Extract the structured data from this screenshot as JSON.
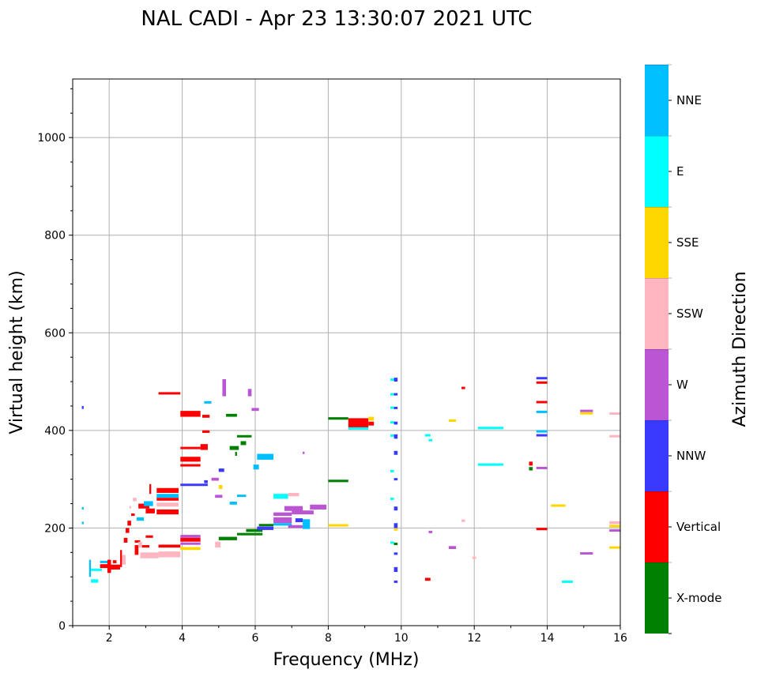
{
  "chart_data": {
    "type": "scatter",
    "title": "NAL CADI - Apr 23 13:30:07 2021 UTC",
    "xlabel": "Frequency (MHz)",
    "ylabel": "Virtual height (km)",
    "xlim": [
      1,
      16
    ],
    "ylim": [
      0,
      1120
    ],
    "xticks": [
      2,
      4,
      6,
      8,
      10,
      12,
      14,
      16
    ],
    "yticks": [
      0,
      200,
      400,
      600,
      800,
      1000
    ],
    "grid": true,
    "colorbar": {
      "label": "Azimuth Direction",
      "categories": [
        "X-mode",
        "Vertical",
        "NNW",
        "W",
        "SSW",
        "SSE",
        "E",
        "NNE"
      ],
      "colors": [
        "#008000",
        "#ff0000",
        "#3a3aff",
        "#ba55d3",
        "#ffb6c1",
        "#ffd700",
        "#00ffff",
        "#00bfff"
      ]
    },
    "segment_format": "[freq_start_MHz, freq_end_MHz, height_low_km, height_high_km, direction_index]",
    "segments": [
      [
        1.25,
        1.3,
        444,
        450,
        2
      ],
      [
        1.25,
        1.3,
        238,
        243,
        7
      ],
      [
        1.25,
        1.3,
        208,
        213,
        7
      ],
      [
        1.45,
        1.5,
        100,
        135,
        7
      ],
      [
        1.5,
        1.7,
        88,
        95,
        6
      ],
      [
        1.5,
        1.8,
        112,
        117,
        6
      ],
      [
        1.75,
        2.0,
        118,
        126,
        1
      ],
      [
        1.75,
        2.0,
        128,
        133,
        7
      ],
      [
        1.95,
        2.05,
        108,
        135,
        1
      ],
      [
        2.05,
        2.3,
        115,
        125,
        1
      ],
      [
        2.1,
        2.2,
        128,
        134,
        1
      ],
      [
        2.3,
        2.35,
        120,
        155,
        1
      ],
      [
        2.35,
        2.45,
        125,
        145,
        4
      ],
      [
        2.4,
        2.5,
        170,
        180,
        1
      ],
      [
        2.45,
        2.55,
        190,
        200,
        1
      ],
      [
        2.5,
        2.6,
        205,
        215,
        1
      ],
      [
        2.55,
        2.6,
        240,
        245,
        4
      ],
      [
        2.6,
        2.7,
        225,
        230,
        1
      ],
      [
        2.65,
        2.75,
        255,
        262,
        4
      ],
      [
        2.7,
        2.8,
        145,
        165,
        1
      ],
      [
        2.7,
        2.85,
        170,
        175,
        1
      ],
      [
        2.75,
        2.95,
        215,
        222,
        7
      ],
      [
        2.8,
        2.9,
        160,
        172,
        4
      ],
      [
        2.8,
        3.1,
        240,
        250,
        1
      ],
      [
        2.85,
        3.35,
        138,
        150,
        4
      ],
      [
        2.9,
        3.1,
        160,
        165,
        1
      ],
      [
        2.95,
        3.2,
        245,
        255,
        7
      ],
      [
        3.0,
        3.25,
        230,
        240,
        1
      ],
      [
        3.0,
        3.2,
        180,
        185,
        1
      ],
      [
        3.1,
        3.15,
        270,
        290,
        1
      ],
      [
        3.3,
        3.9,
        228,
        238,
        1
      ],
      [
        3.3,
        3.9,
        244,
        252,
        4
      ],
      [
        3.3,
        3.9,
        256,
        262,
        1
      ],
      [
        3.3,
        3.9,
        262,
        270,
        7
      ],
      [
        3.3,
        3.9,
        272,
        282,
        1
      ],
      [
        3.35,
        3.95,
        140,
        152,
        4
      ],
      [
        3.35,
        3.95,
        160,
        166,
        1
      ],
      [
        3.95,
        4.5,
        155,
        161,
        5
      ],
      [
        3.95,
        4.5,
        166,
        170,
        3
      ],
      [
        3.95,
        4.5,
        172,
        180,
        1
      ],
      [
        3.95,
        4.5,
        180,
        186,
        3
      ],
      [
        3.35,
        3.95,
        474,
        478,
        1
      ],
      [
        3.95,
        4.5,
        428,
        440,
        1
      ],
      [
        3.95,
        4.5,
        362,
        366,
        1
      ],
      [
        3.95,
        4.5,
        336,
        346,
        1
      ],
      [
        3.95,
        4.5,
        326,
        331,
        1
      ],
      [
        3.95,
        4.7,
        287,
        290,
        2
      ],
      [
        4.5,
        4.7,
        360,
        372,
        1
      ],
      [
        4.55,
        4.75,
        395,
        400,
        1
      ],
      [
        4.55,
        4.75,
        426,
        432,
        1
      ],
      [
        4.6,
        4.8,
        455,
        460,
        7
      ],
      [
        4.6,
        4.7,
        292,
        298,
        2
      ],
      [
        4.8,
        5.0,
        297,
        303,
        3
      ],
      [
        4.9,
        5.1,
        262,
        268,
        3
      ],
      [
        4.9,
        5.05,
        160,
        172,
        4
      ],
      [
        5.0,
        5.15,
        315,
        322,
        2
      ],
      [
        5.0,
        5.1,
        280,
        288,
        5
      ],
      [
        5.0,
        5.5,
        175,
        182,
        0
      ],
      [
        5.1,
        5.2,
        470,
        505,
        3
      ],
      [
        5.2,
        5.5,
        428,
        434,
        0
      ],
      [
        5.3,
        5.55,
        360,
        368,
        0
      ],
      [
        5.45,
        5.5,
        348,
        356,
        0
      ],
      [
        5.5,
        5.9,
        386,
        390,
        0
      ],
      [
        5.3,
        5.5,
        248,
        254,
        7
      ],
      [
        5.5,
        5.75,
        264,
        268,
        7
      ],
      [
        5.6,
        5.75,
        370,
        378,
        0
      ],
      [
        5.8,
        5.9,
        470,
        485,
        3
      ],
      [
        5.9,
        6.1,
        440,
        446,
        3
      ],
      [
        5.5,
        6.2,
        185,
        190,
        0
      ],
      [
        5.75,
        6.2,
        192,
        198,
        0
      ],
      [
        5.95,
        6.1,
        320,
        330,
        7
      ],
      [
        6.05,
        6.5,
        340,
        352,
        7
      ],
      [
        6.05,
        6.5,
        196,
        203,
        2
      ],
      [
        6.1,
        6.5,
        204,
        208,
        0
      ],
      [
        6.5,
        6.9,
        260,
        270,
        6
      ],
      [
        6.5,
        7.0,
        225,
        232,
        3
      ],
      [
        6.5,
        7.0,
        210,
        222,
        3
      ],
      [
        6.5,
        7.0,
        205,
        210,
        7
      ],
      [
        6.9,
        7.2,
        265,
        272,
        4
      ],
      [
        6.8,
        7.3,
        235,
        245,
        3
      ],
      [
        7.0,
        7.6,
        228,
        236,
        3
      ],
      [
        7.1,
        7.3,
        212,
        220,
        2
      ],
      [
        7.3,
        7.5,
        198,
        218,
        7
      ],
      [
        7.5,
        7.95,
        238,
        248,
        3
      ],
      [
        7.3,
        7.35,
        352,
        356,
        3
      ],
      [
        6.9,
        7.3,
        200,
        206,
        3
      ],
      [
        8.0,
        8.55,
        422,
        427,
        0
      ],
      [
        8.55,
        9.1,
        405,
        425,
        1
      ],
      [
        8.55,
        9.1,
        402,
        406,
        6
      ],
      [
        9.1,
        9.25,
        420,
        428,
        5
      ],
      [
        9.1,
        9.25,
        410,
        418,
        1
      ],
      [
        8.0,
        8.55,
        294,
        299,
        0
      ],
      [
        8.0,
        8.55,
        203,
        208,
        5
      ],
      [
        9.7,
        9.8,
        502,
        506,
        6
      ],
      [
        9.8,
        9.9,
        500,
        508,
        2
      ],
      [
        9.7,
        9.8,
        472,
        476,
        6
      ],
      [
        9.8,
        9.9,
        472,
        476,
        2
      ],
      [
        9.7,
        9.8,
        445,
        448,
        6
      ],
      [
        9.8,
        9.9,
        444,
        448,
        2
      ],
      [
        9.7,
        9.8,
        415,
        418,
        6
      ],
      [
        9.8,
        9.9,
        412,
        418,
        2
      ],
      [
        9.7,
        9.8,
        388,
        391,
        6
      ],
      [
        9.8,
        9.9,
        383,
        392,
        2
      ],
      [
        9.8,
        9.9,
        350,
        358,
        2
      ],
      [
        9.7,
        9.8,
        315,
        318,
        6
      ],
      [
        9.8,
        9.9,
        298,
        302,
        2
      ],
      [
        9.7,
        9.8,
        258,
        262,
        6
      ],
      [
        9.8,
        9.9,
        236,
        244,
        2
      ],
      [
        9.8,
        9.9,
        200,
        210,
        2
      ],
      [
        9.7,
        9.8,
        168,
        172,
        6
      ],
      [
        9.8,
        9.9,
        165,
        170,
        0
      ],
      [
        9.8,
        9.9,
        145,
        150,
        2
      ],
      [
        9.8,
        9.9,
        110,
        120,
        2
      ],
      [
        9.8,
        9.9,
        88,
        92,
        2
      ],
      [
        9.8,
        9.9,
        195,
        199,
        5
      ],
      [
        10.65,
        10.8,
        388,
        392,
        6
      ],
      [
        10.75,
        10.85,
        378,
        382,
        6
      ],
      [
        10.65,
        10.8,
        92,
        98,
        1
      ],
      [
        10.75,
        10.85,
        190,
        194,
        3
      ],
      [
        11.3,
        11.5,
        418,
        422,
        5
      ],
      [
        11.3,
        11.5,
        157,
        163,
        3
      ],
      [
        11.65,
        11.75,
        485,
        489,
        1
      ],
      [
        11.65,
        11.75,
        213,
        217,
        4
      ],
      [
        11.95,
        12.05,
        138,
        140,
        4
      ],
      [
        12.1,
        12.8,
        403,
        407,
        6
      ],
      [
        12.1,
        12.8,
        328,
        332,
        6
      ],
      [
        13.5,
        13.6,
        328,
        336,
        1
      ],
      [
        13.5,
        13.6,
        318,
        325,
        0
      ],
      [
        13.7,
        14.0,
        505,
        509,
        2
      ],
      [
        13.7,
        14.0,
        496,
        500,
        1
      ],
      [
        13.7,
        14.0,
        456,
        460,
        1
      ],
      [
        13.7,
        14.0,
        436,
        440,
        7
      ],
      [
        13.7,
        14.0,
        396,
        400,
        7
      ],
      [
        13.7,
        14.0,
        388,
        392,
        2
      ],
      [
        13.7,
        14.0,
        321,
        325,
        3
      ],
      [
        13.7,
        14.0,
        196,
        200,
        1
      ],
      [
        14.1,
        14.5,
        244,
        248,
        5
      ],
      [
        14.4,
        14.7,
        88,
        92,
        6
      ],
      [
        14.9,
        15.25,
        438,
        442,
        3
      ],
      [
        14.9,
        15.25,
        433,
        437,
        5
      ],
      [
        14.9,
        15.25,
        146,
        150,
        3
      ],
      [
        15.7,
        16.0,
        433,
        436,
        4
      ],
      [
        15.7,
        16.0,
        386,
        390,
        4
      ],
      [
        15.7,
        16.0,
        208,
        214,
        4
      ],
      [
        15.7,
        16.0,
        202,
        206,
        5
      ],
      [
        15.7,
        16.0,
        193,
        197,
        3
      ],
      [
        15.7,
        16.0,
        158,
        162,
        5
      ]
    ]
  }
}
